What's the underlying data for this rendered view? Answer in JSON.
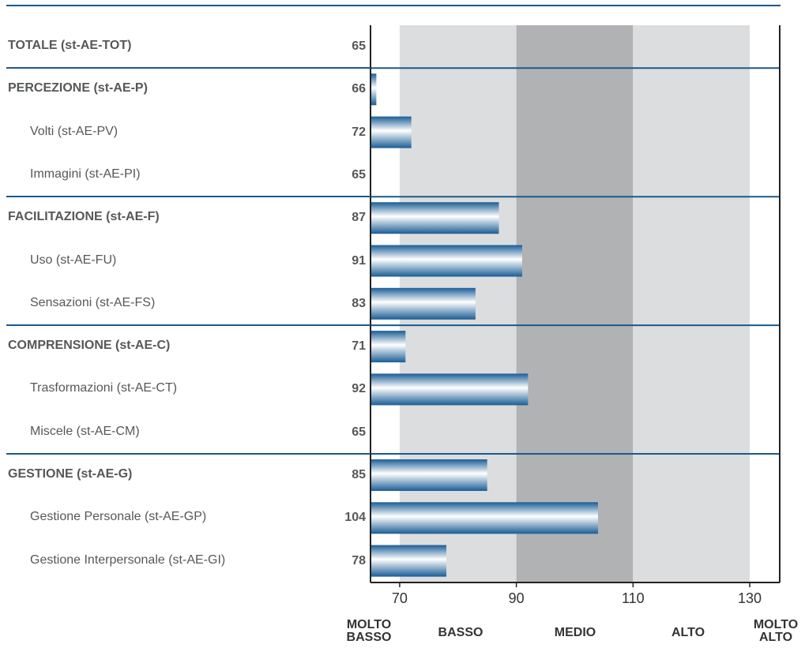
{
  "chart_data": {
    "type": "bar",
    "orientation": "horizontal",
    "xlim": [
      65,
      130
    ],
    "x_ticks": [
      "70",
      "90",
      "110",
      "130"
    ],
    "band_labels": [
      "MOLTO\nBASSO",
      "BASSO",
      "MEDIO",
      "ALTO",
      "MOLTO\nALTO"
    ],
    "bands": [
      {
        "from": 65,
        "to": 70,
        "color": "#ffffff"
      },
      {
        "from": 70,
        "to": 90,
        "color": "#dcddde"
      },
      {
        "from": 90,
        "to": 110,
        "color": "#b1b2b4"
      },
      {
        "from": 110,
        "to": 130,
        "color": "#dcddde"
      },
      {
        "from": 130,
        "to": 135,
        "color": "#ffffff"
      }
    ],
    "bar_colors": {
      "dark": "#1a5d96",
      "light": "#ffffff"
    },
    "section_line_color": "#1c5a8c",
    "rows": [
      {
        "label": "TOTALE (st-AE-TOT)",
        "value": 65,
        "main": true
      },
      {
        "label": "PERCEZIONE (st-AE-P)",
        "value": 66,
        "main": true
      },
      {
        "label": "Volti (st-AE-PV)",
        "value": 72,
        "main": false
      },
      {
        "label": "Immagini (st-AE-PI)",
        "value": 65,
        "main": false
      },
      {
        "label": "FACILITAZIONE (st-AE-F)",
        "value": 87,
        "main": true
      },
      {
        "label": "Uso (st-AE-FU)",
        "value": 91,
        "main": false
      },
      {
        "label": "Sensazioni (st-AE-FS)",
        "value": 83,
        "main": false
      },
      {
        "label": "COMPRENSIONE (st-AE-C)",
        "value": 71,
        "main": true
      },
      {
        "label": "Trasformazioni (st-AE-CT)",
        "value": 92,
        "main": false
      },
      {
        "label": "Miscele (st-AE-CM)",
        "value": 65,
        "main": false
      },
      {
        "label": "GESTIONE (st-AE-G)",
        "value": 85,
        "main": true
      },
      {
        "label": "Gestione Personale (st-AE-GP)",
        "value": 104,
        "main": false
      },
      {
        "label": "Gestione Interpersonale (st-AE-GI)",
        "value": 78,
        "main": false
      }
    ]
  }
}
